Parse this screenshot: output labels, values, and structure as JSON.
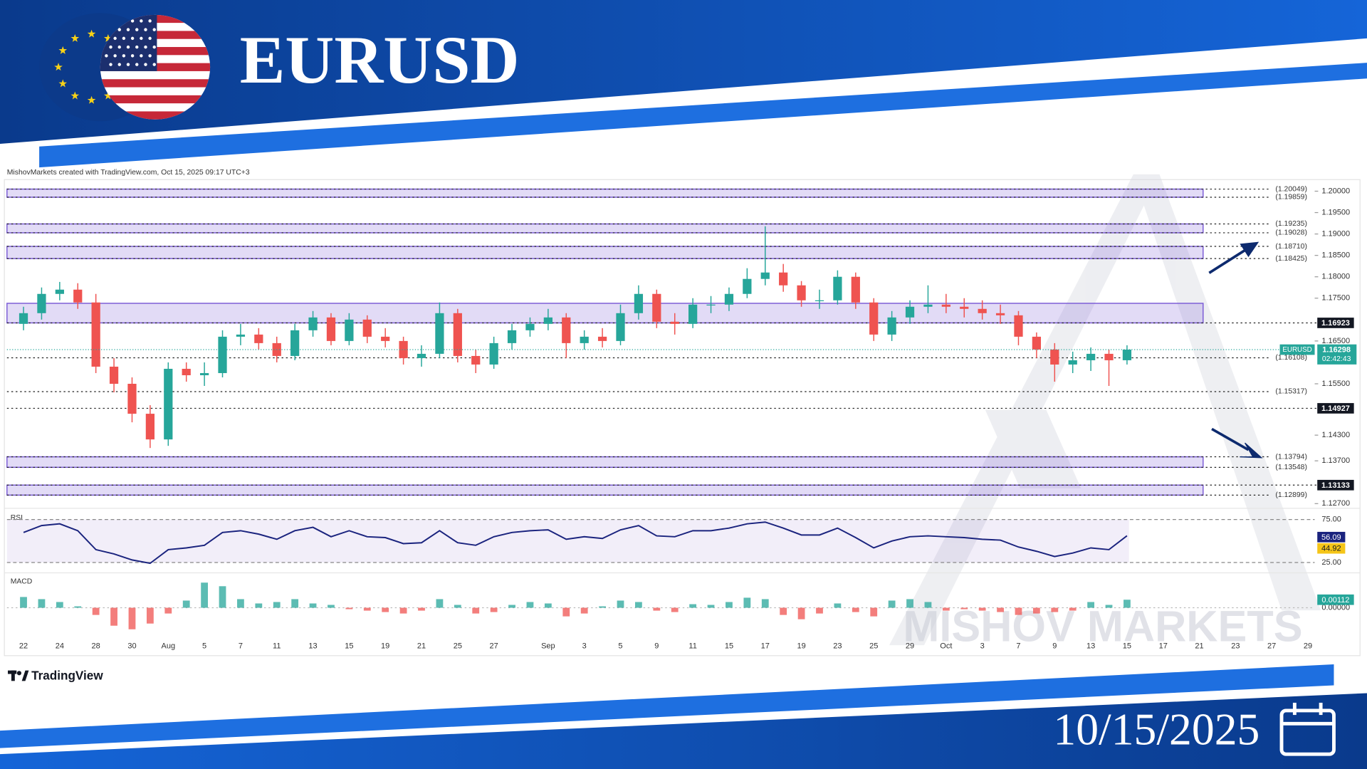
{
  "header": {
    "title": "EURUSD"
  },
  "footer": {
    "date": "10/15/2025",
    "brand": "TradingView"
  },
  "watermark": "MISHOV MARKETS",
  "chart_data": {
    "type": "candlestick",
    "credit": "MishovMarkets created with TradingView.com, Oct 15, 2025 09:17 UTC+3",
    "symbol": "EURUSD",
    "countdown": "02:42:43",
    "up_color": "#26a69a",
    "down_color": "#ef5350",
    "zone_color": "#7b5cd6",
    "categories": [
      "22",
      null,
      "24",
      null,
      "28",
      null,
      "30",
      null,
      "Aug",
      null,
      "5",
      null,
      "7",
      null,
      "11",
      null,
      "13",
      null,
      "15",
      null,
      "19",
      null,
      "21",
      null,
      "25",
      null,
      "27",
      null,
      null,
      "Sep",
      null,
      "3",
      null,
      "5",
      null,
      "9",
      null,
      "11",
      null,
      "15",
      null,
      "17",
      null,
      "19",
      null,
      "23",
      null,
      "25",
      null,
      "29",
      null,
      "Oct",
      null,
      "3",
      null,
      "7",
      null,
      "9",
      null,
      "13",
      null,
      "15",
      null,
      "17",
      null,
      "21",
      null,
      "23",
      null,
      "27",
      null,
      "29"
    ],
    "ohlc": [
      [
        1.169,
        1.173,
        1.1675,
        1.1715
      ],
      [
        1.1715,
        1.1775,
        1.17,
        1.176
      ],
      [
        1.176,
        1.1788,
        1.1745,
        1.177
      ],
      [
        1.177,
        1.1785,
        1.1725,
        1.174
      ],
      [
        1.174,
        1.176,
        1.1575,
        1.159
      ],
      [
        1.159,
        1.161,
        1.153,
        1.155
      ],
      [
        1.155,
        1.1565,
        1.146,
        1.148
      ],
      [
        1.148,
        1.15,
        1.14,
        1.142
      ],
      [
        1.142,
        1.16,
        1.1405,
        1.1585
      ],
      [
        1.1585,
        1.16,
        1.1555,
        1.157
      ],
      [
        1.157,
        1.16,
        1.1545,
        1.1575
      ],
      [
        1.1575,
        1.1675,
        1.1565,
        1.166
      ],
      [
        1.166,
        1.169,
        1.164,
        1.1665
      ],
      [
        1.1665,
        1.168,
        1.163,
        1.1645
      ],
      [
        1.1645,
        1.166,
        1.16,
        1.1615
      ],
      [
        1.1615,
        1.169,
        1.1605,
        1.1675
      ],
      [
        1.1675,
        1.172,
        1.166,
        1.1705
      ],
      [
        1.1705,
        1.1715,
        1.164,
        1.165
      ],
      [
        1.165,
        1.1715,
        1.164,
        1.17
      ],
      [
        1.17,
        1.171,
        1.1645,
        1.166
      ],
      [
        1.166,
        1.168,
        1.1635,
        1.165
      ],
      [
        1.165,
        1.166,
        1.1595,
        1.161
      ],
      [
        1.161,
        1.164,
        1.159,
        1.162
      ],
      [
        1.162,
        1.174,
        1.161,
        1.1715
      ],
      [
        1.1715,
        1.1725,
        1.16,
        1.1615
      ],
      [
        1.1615,
        1.163,
        1.1575,
        1.1595
      ],
      [
        1.1595,
        1.166,
        1.1585,
        1.1645
      ],
      [
        1.1645,
        1.169,
        1.163,
        1.1675
      ],
      [
        1.1675,
        1.1705,
        1.166,
        1.169
      ],
      [
        1.169,
        1.1725,
        1.1675,
        1.1705
      ],
      [
        1.1705,
        1.1715,
        1.161,
        1.1645
      ],
      [
        1.1645,
        1.1675,
        1.163,
        1.166
      ],
      [
        1.166,
        1.168,
        1.1635,
        1.165
      ],
      [
        1.165,
        1.1735,
        1.164,
        1.1715
      ],
      [
        1.1715,
        1.178,
        1.17,
        1.176
      ],
      [
        1.176,
        1.177,
        1.168,
        1.1695
      ],
      [
        1.1695,
        1.1715,
        1.1665,
        1.169
      ],
      [
        1.169,
        1.175,
        1.168,
        1.1735
      ],
      [
        1.1735,
        1.1755,
        1.1715,
        1.1735
      ],
      [
        1.1735,
        1.1775,
        1.172,
        1.176
      ],
      [
        1.176,
        1.182,
        1.175,
        1.1795
      ],
      [
        1.1795,
        1.1918,
        1.178,
        1.181
      ],
      [
        1.181,
        1.183,
        1.1765,
        1.178
      ],
      [
        1.178,
        1.179,
        1.173,
        1.1745
      ],
      [
        1.1745,
        1.177,
        1.1725,
        1.1745
      ],
      [
        1.1745,
        1.1815,
        1.1735,
        1.18
      ],
      [
        1.18,
        1.181,
        1.1725,
        1.174
      ],
      [
        1.174,
        1.175,
        1.165,
        1.1665
      ],
      [
        1.1665,
        1.172,
        1.165,
        1.1705
      ],
      [
        1.1705,
        1.1745,
        1.169,
        1.173
      ],
      [
        1.173,
        1.178,
        1.1715,
        1.1735
      ],
      [
        1.1735,
        1.176,
        1.1715,
        1.173
      ],
      [
        1.173,
        1.175,
        1.1705,
        1.1725
      ],
      [
        1.1725,
        1.1745,
        1.17,
        1.1715
      ],
      [
        1.1715,
        1.1735,
        1.169,
        1.171
      ],
      [
        1.171,
        1.172,
        1.164,
        1.166
      ],
      [
        1.166,
        1.167,
        1.161,
        1.163
      ],
      [
        1.163,
        1.1645,
        1.1555,
        1.1595
      ],
      [
        1.1595,
        1.1625,
        1.1575,
        1.1605
      ],
      [
        1.1605,
        1.1635,
        1.158,
        1.162
      ],
      [
        1.162,
        1.163,
        1.1545,
        1.1605
      ],
      [
        1.1605,
        1.164,
        1.1595,
        1.16298
      ]
    ],
    "ylim": [
      1.1255,
      1.2025
    ],
    "yticks": [
      {
        "value": 1.2,
        "label": "1.20000"
      },
      {
        "value": 1.195,
        "label": "1.19500"
      },
      {
        "value": 1.19,
        "label": "1.19000"
      },
      {
        "value": 1.185,
        "label": "1.18500"
      },
      {
        "value": 1.18,
        "label": "1.18000"
      },
      {
        "value": 1.175,
        "label": "1.17500"
      },
      {
        "value": 1.165,
        "label": "1.16500"
      },
      {
        "value": 1.155,
        "label": "1.15500"
      },
      {
        "value": 1.143,
        "label": "1.14300"
      },
      {
        "value": 1.137,
        "label": "1.13700"
      },
      {
        "value": 1.127,
        "label": "1.12700"
      }
    ],
    "levels": [
      {
        "value": 1.20049,
        "label": "(1.20049)"
      },
      {
        "value": 1.19859,
        "label": "(1.19859)"
      },
      {
        "value": 1.19235,
        "label": "(1.19235)"
      },
      {
        "value": 1.19028,
        "label": "(1.19028)"
      },
      {
        "value": 1.1871,
        "label": "(1.18710)"
      },
      {
        "value": 1.18425,
        "label": "(1.18425)"
      },
      1.16923,
      {
        "value": 1.16108,
        "label": "(1.16108)"
      },
      {
        "value": 1.15317,
        "label": "(1.15317)"
      },
      1.14927,
      {
        "value": 1.13794,
        "label": "(1.13794)"
      },
      {
        "value": 1.13548,
        "label": "(1.13548)"
      },
      1.13133,
      {
        "value": 1.12899,
        "label": "(1.12899)"
      }
    ],
    "zones": [
      [
        1.19859,
        1.20049
      ],
      [
        1.19028,
        1.19235
      ],
      [
        1.18425,
        1.1871
      ],
      [
        1.16923,
        1.1738
      ],
      [
        1.13548,
        1.13794
      ],
      [
        1.12899,
        1.13133
      ]
    ],
    "rsi": {
      "title": "RSI",
      "color": "#1a237e",
      "ma_color": "#f5c518",
      "ylim": [
        15,
        83
      ],
      "yticks": [
        {
          "value": 75,
          "label": "75.00"
        },
        {
          "value": 25,
          "label": "25.00"
        }
      ],
      "values": [
        60,
        68,
        70,
        62,
        40,
        35,
        28,
        24,
        40,
        42,
        45,
        60,
        62,
        58,
        52,
        62,
        66,
        55,
        62,
        55,
        54,
        47,
        48,
        62,
        48,
        45,
        55,
        60,
        62,
        63,
        52,
        55,
        53,
        63,
        68,
        56,
        55,
        62,
        62,
        65,
        70,
        72,
        65,
        57,
        57,
        65,
        54,
        42,
        50,
        55,
        56,
        55,
        54,
        52,
        51,
        43,
        38,
        32,
        36,
        42,
        40,
        56.09
      ],
      "ma": 44.92
    },
    "macd": {
      "title": "MACD",
      "up_color": "#26a69a",
      "down_color": "#ef5350",
      "ylim": [
        -0.004,
        0.0045
      ],
      "yticks": [
        {
          "value": 0,
          "label": "0.00000"
        }
      ],
      "values": [
        0.0015,
        0.0012,
        0.0008,
        0.0002,
        -0.001,
        -0.0025,
        -0.003,
        -0.0022,
        -0.0008,
        0.001,
        0.0035,
        0.003,
        0.0012,
        0.0006,
        0.0008,
        0.0012,
        0.0006,
        0.0004,
        -0.0002,
        -0.0004,
        -0.0006,
        -0.0008,
        -0.0004,
        0.0012,
        0.0004,
        -0.0008,
        -0.0006,
        0.0004,
        0.0008,
        0.0006,
        -0.0012,
        -0.0008,
        0.0002,
        0.001,
        0.0008,
        -0.0004,
        -0.0006,
        0.0005,
        0.0004,
        0.0008,
        0.0014,
        0.0012,
        -0.001,
        -0.0016,
        -0.0008,
        0.0006,
        -0.0006,
        -0.0012,
        0.001,
        0.0012,
        0.0008,
        -0.0004,
        -0.0002,
        -0.0004,
        -0.0006,
        -0.001,
        -0.0008,
        -0.0006,
        -0.0004,
        0.0008,
        0.0004,
        0.00112
      ]
    }
  }
}
